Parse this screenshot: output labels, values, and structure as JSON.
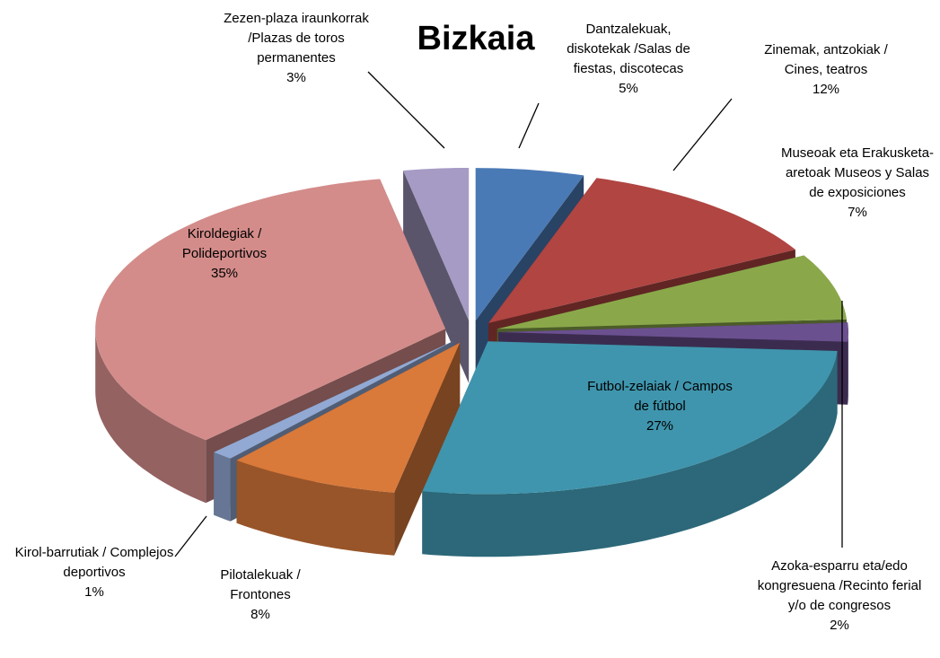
{
  "chart_data": {
    "type": "pie",
    "title": "Bizkaia",
    "categories": [
      "Dantzalekuak, diskotekak /Salas de fiestas, discotecas",
      "Zinemak, antzokiak / Cines, teatros",
      "Museoak eta Erakusketa-aretoak Museos y Salas de exposiciones",
      "Azoka-esparru eta/edo kongresuena /Recinto ferial y/o de congresos",
      "Futbol-zelaiak / Campos de fútbol",
      "Pilotalekuak / Frontones",
      "Kirol-barrutiak / Complejos deportivos",
      "Kiroldegiak / Polideportivos",
      "Zezen-plaza iraunkorrak /Plazas de toros permanentes"
    ],
    "values": [
      5,
      12,
      7,
      2,
      27,
      8,
      1,
      35,
      3
    ],
    "value_labels": [
      "5%",
      "12%",
      "7%",
      "2%",
      "27%",
      "8%",
      "1%",
      "35%",
      "3%"
    ],
    "colors": [
      "#4a7ab5",
      "#b04542",
      "#8aa84a",
      "#6b5090",
      "#3f95ad",
      "#d9793a",
      "#92a9d3",
      "#d38c8a",
      "#a59bc4"
    ]
  }
}
